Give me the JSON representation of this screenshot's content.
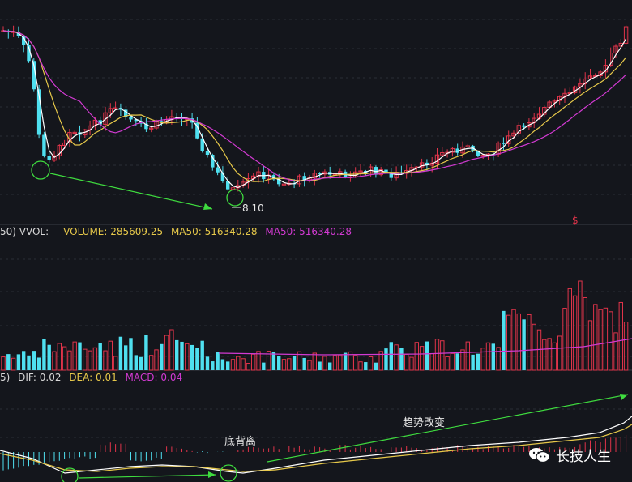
{
  "colors": {
    "background": "#14161c",
    "up": "#e0344a",
    "down": "#4fe0f0",
    "ma_short": "#ffffff",
    "ma_mid": "#e6c84a",
    "ma_long": "#d23ad2",
    "annotation": "#3fdc3f"
  },
  "price_panel": {
    "low_label": "8.10",
    "signal_glyph": "$"
  },
  "volume_header": {
    "prefix": "50) VVOL: -",
    "volume": "VOLUME: 285609.25",
    "ma50": "MA50: 516340.28",
    "ma50_b": "MA50: 516340.28"
  },
  "macd_header": {
    "prefix": "5)",
    "dif": "DIF: 0.02",
    "dea": "DEA: 0.01",
    "macd": "MACD: 0.04"
  },
  "annotations": {
    "bottom_divergence": "底背离",
    "trend_change": "趋势改变"
  },
  "watermark": {
    "icon": "wechat-icon",
    "text": "长技人生"
  },
  "chart_data": {
    "type": "candlestick",
    "panels": [
      "price",
      "volume",
      "macd"
    ],
    "annotated_low": 8.1,
    "volume_ma50": 516340.28,
    "last_volume": 285609.25,
    "dif": 0.02,
    "dea": 0.01,
    "macd": 0.04
  }
}
